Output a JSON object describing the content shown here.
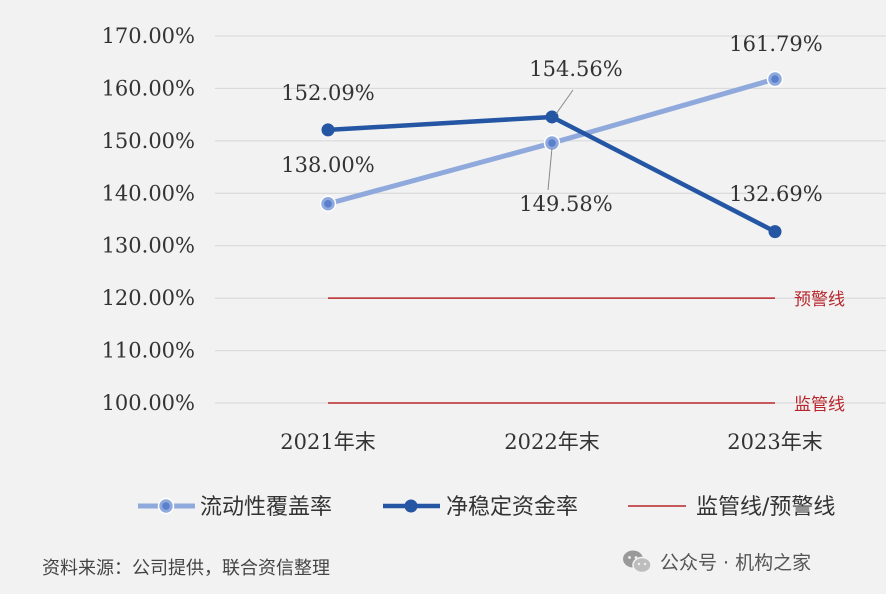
{
  "chart_data": {
    "type": "line",
    "categories": [
      "2021年末",
      "2022年末",
      "2023年末"
    ],
    "ylim": [
      100,
      170
    ],
    "yticks": [
      "100.00%",
      "110.00%",
      "120.00%",
      "130.00%",
      "140.00%",
      "150.00%",
      "160.00%",
      "170.00%"
    ],
    "grid": true,
    "legend_position": "bottom",
    "series": [
      {
        "name": "流动性覆盖率",
        "values": [
          138.0,
          149.58,
          161.79
        ],
        "labels": [
          "138.00%",
          "149.58%",
          "161.79%"
        ],
        "color": "#8fa9dc"
      },
      {
        "name": "净稳定资金率",
        "values": [
          152.09,
          154.56,
          132.69
        ],
        "labels": [
          "152.09%",
          "154.56%",
          "132.69%"
        ],
        "color": "#2456a4"
      }
    ],
    "reference_lines": [
      {
        "label": "预警线",
        "value": 120,
        "color": "#b8262b"
      },
      {
        "label": "监管线",
        "value": 100,
        "color": "#b8262b"
      }
    ],
    "reference_legend": "监管线/预警线"
  },
  "source": "资料来源：公司提供，联合资信整理",
  "watermark": {
    "text": "公众号 · 机构之家",
    "icon": "wechat-icon"
  }
}
